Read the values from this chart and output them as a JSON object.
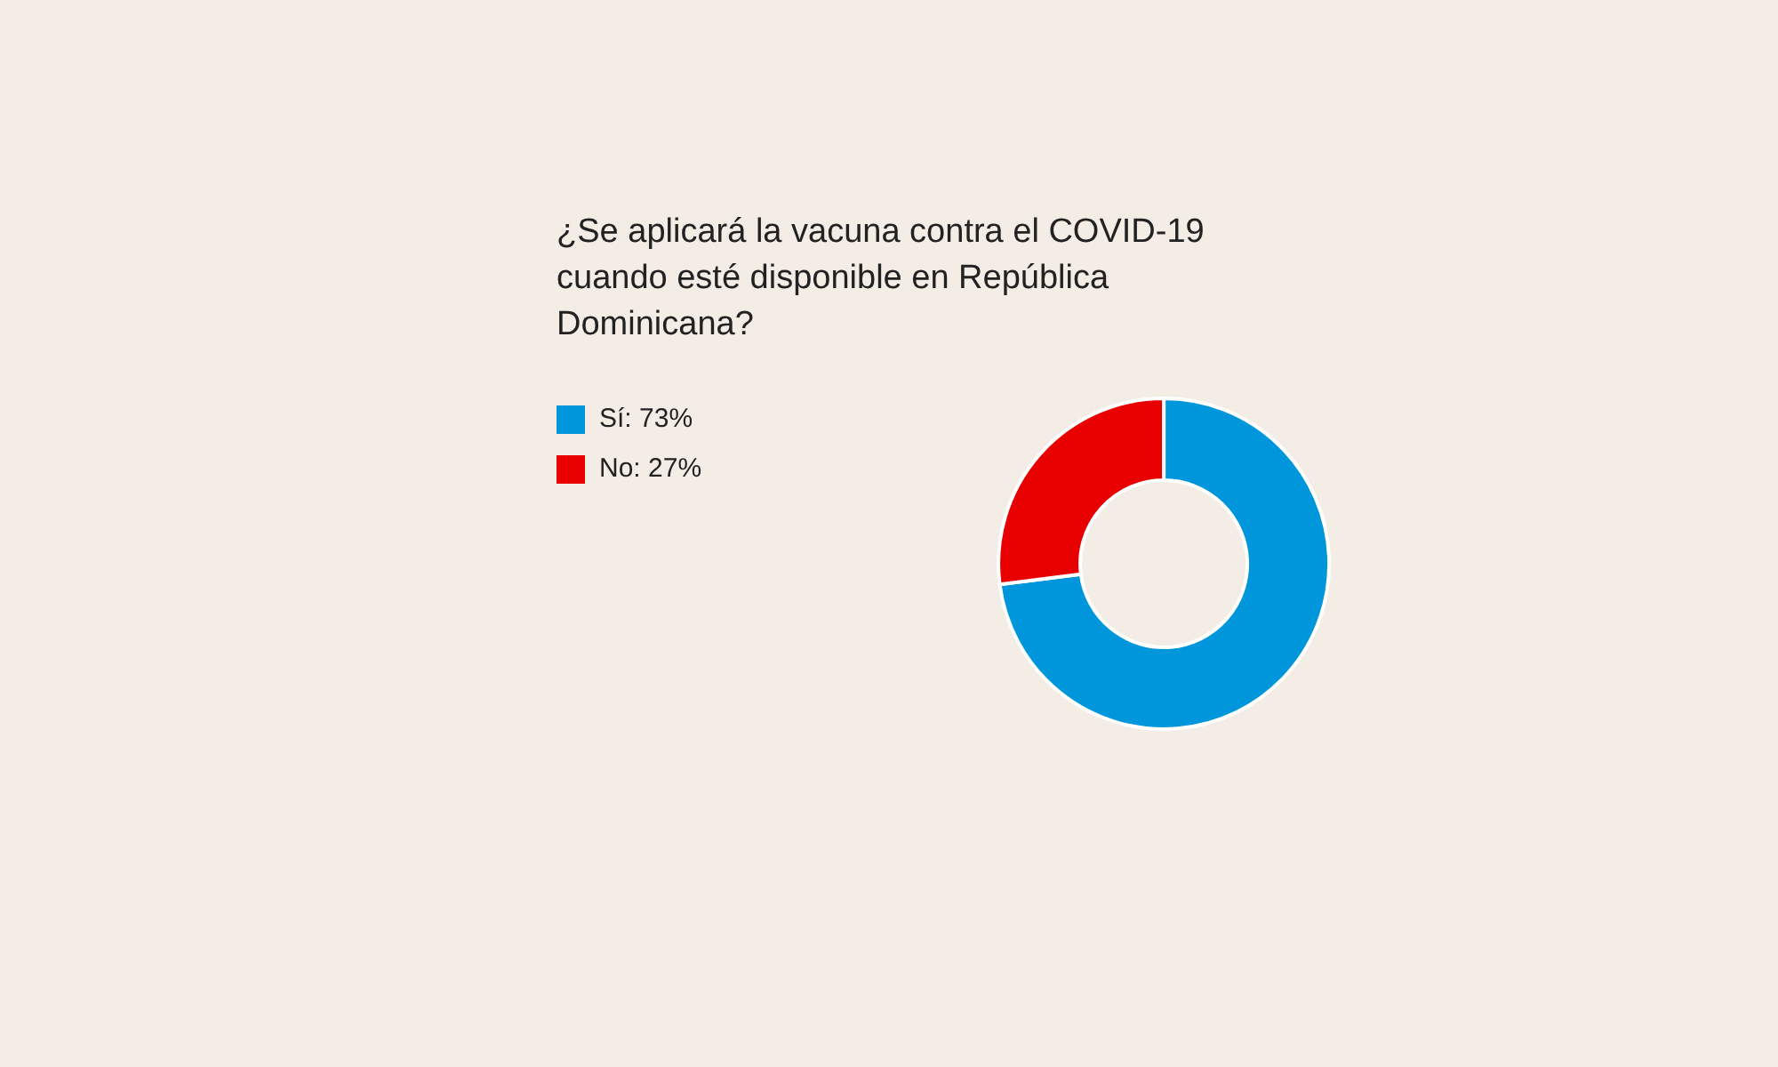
{
  "chart_data": {
    "type": "donut",
    "title": "¿Se aplicará la vacuna contra el COVID-19 cuando esté disponible en República Dominicana?",
    "categories": [
      "Sí",
      "No"
    ],
    "values": [
      73,
      27
    ],
    "value_labels": [
      "73%",
      "27%"
    ],
    "colors": [
      "#0096dc",
      "#e80000"
    ],
    "legend": "left"
  }
}
